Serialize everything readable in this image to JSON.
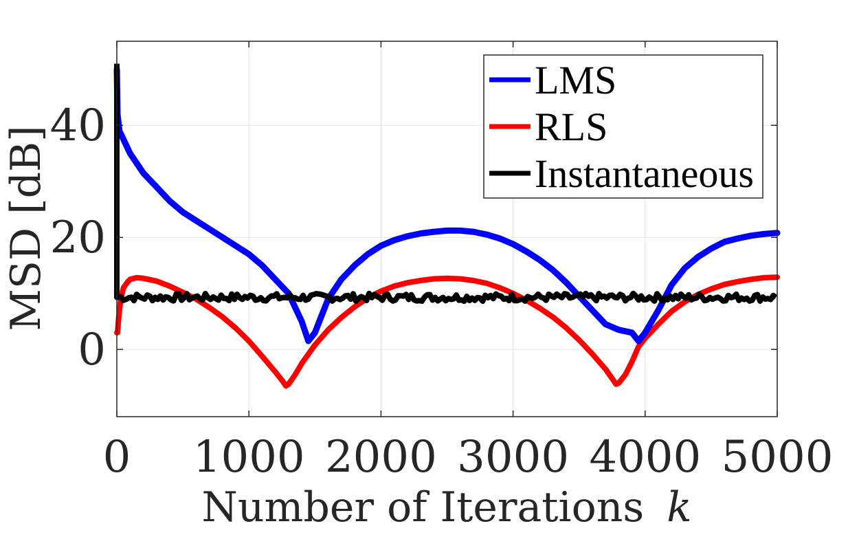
{
  "chart_data": {
    "type": "line",
    "xlabel": "Number of Iterations",
    "xlabel_var": "k",
    "ylabel": "MSD [dB]",
    "xlim": [
      0,
      5000
    ],
    "ylim": [
      -12,
      55
    ],
    "xticks": [
      0,
      1000,
      2000,
      3000,
      4000,
      5000
    ],
    "xtick_labels": [
      "0",
      "1000",
      "2000",
      "3000",
      "4000",
      "5000"
    ],
    "yticks": [
      0,
      20,
      40
    ],
    "ytick_labels": [
      "0",
      "20",
      "40"
    ],
    "grid": true,
    "legend_position": "top-right",
    "series": [
      {
        "name": "LMS",
        "color": "#0000ff",
        "x": [
          0,
          5,
          20,
          50,
          100,
          200,
          300,
          400,
          500,
          600,
          700,
          800,
          900,
          1000,
          1100,
          1200,
          1300,
          1400,
          1450,
          1500,
          1550,
          1600,
          1700,
          1800,
          1900,
          2000,
          2100,
          2200,
          2300,
          2400,
          2500,
          2600,
          2700,
          2800,
          2900,
          3000,
          3100,
          3200,
          3300,
          3400,
          3500,
          3600,
          3700,
          3800,
          3900,
          3950,
          4000,
          4050,
          4100,
          4200,
          4300,
          4400,
          4500,
          4600,
          4700,
          4800,
          4900,
          5000
        ],
        "y": [
          50,
          42,
          39,
          37.5,
          35,
          31.5,
          29,
          26.5,
          24.5,
          23,
          21.5,
          20,
          18.5,
          17,
          15,
          12.5,
          10,
          5,
          1.5,
          3,
          6,
          9,
          12.5,
          15,
          17,
          18.5,
          19.5,
          20.2,
          20.7,
          21,
          21.2,
          21.2,
          21,
          20.5,
          19.8,
          18.8,
          17.5,
          16,
          14.2,
          12,
          9.5,
          7,
          4.5,
          3.5,
          3,
          1.5,
          3,
          5,
          7,
          11.5,
          14.5,
          16.5,
          18,
          19.2,
          19.8,
          20.3,
          20.6,
          20.8
        ]
      },
      {
        "name": "RLS",
        "color": "#ff0000",
        "x": [
          0,
          5,
          15,
          30,
          50,
          80,
          100,
          150,
          200,
          300,
          400,
          500,
          600,
          700,
          800,
          900,
          1000,
          1100,
          1200,
          1250,
          1280,
          1300,
          1350,
          1400,
          1500,
          1600,
          1700,
          1800,
          1900,
          2000,
          2100,
          2200,
          2300,
          2400,
          2500,
          2600,
          2700,
          2800,
          2900,
          3000,
          3100,
          3200,
          3300,
          3400,
          3500,
          3600,
          3700,
          3750,
          3780,
          3800,
          3850,
          3900,
          3950,
          4000,
          4100,
          4200,
          4300,
          4400,
          4500,
          4600,
          4700,
          4800,
          4900,
          5000
        ],
        "y": [
          3,
          3,
          6,
          9,
          11,
          12,
          12.5,
          12.8,
          12.7,
          12.2,
          11.3,
          10.2,
          9,
          7.5,
          5.8,
          3.8,
          1.5,
          -1.2,
          -4,
          -5.5,
          -6.5,
          -6.2,
          -4.5,
          -2.5,
          0.8,
          3.5,
          5.7,
          7.6,
          9.2,
          10.4,
          11.3,
          11.9,
          12.3,
          12.6,
          12.7,
          12.6,
          12.3,
          11.8,
          11,
          10,
          8.8,
          7.4,
          5.8,
          3.9,
          1.7,
          -0.8,
          -3.5,
          -5.2,
          -6.2,
          -6,
          -4.5,
          -2.2,
          0.5,
          2,
          4.5,
          6.8,
          8.5,
          9.8,
          10.8,
          11.6,
          12.1,
          12.5,
          12.8,
          12.9
        ]
      },
      {
        "name": "Instantaneous",
        "color": "#000000",
        "x_start": 0,
        "x_end": 5000,
        "initial_y": 51,
        "steady_y": 9.3,
        "jitter": 0.7
      }
    ]
  }
}
